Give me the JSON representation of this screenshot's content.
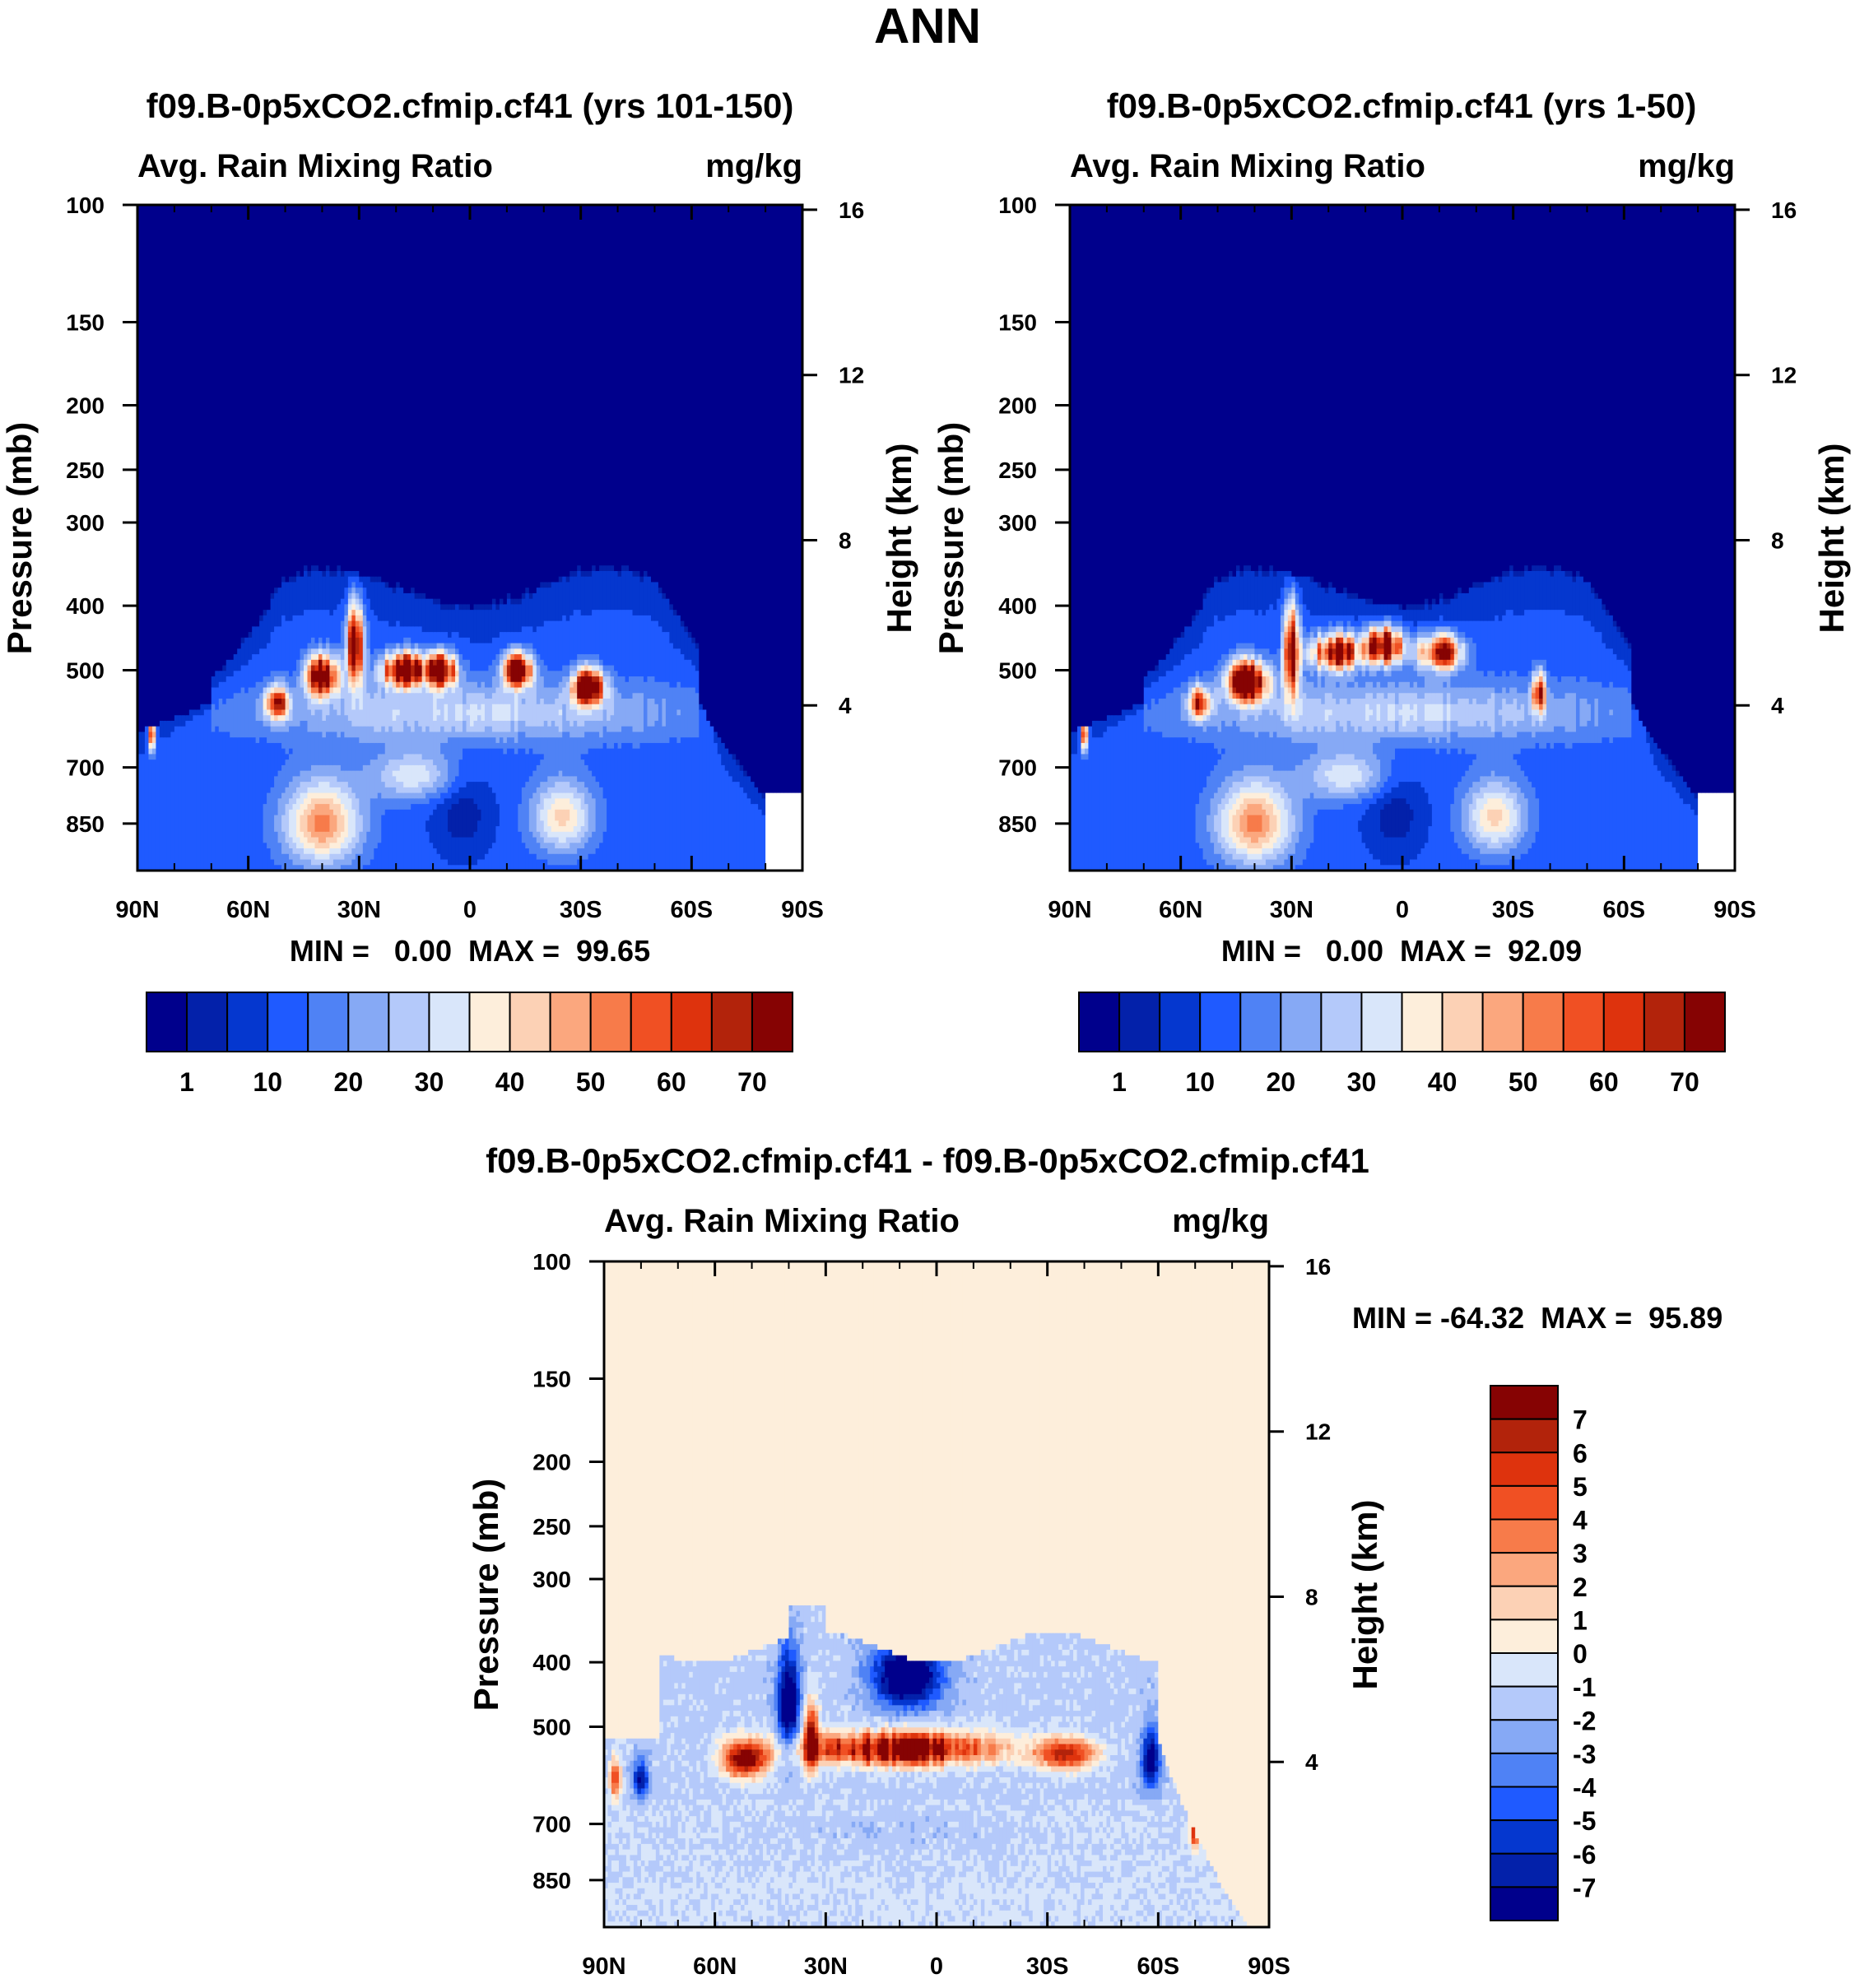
{
  "page_title": "ANN",
  "colors": {
    "seq": [
      "#00008c",
      "#0321aa",
      "#0537cf",
      "#1f5aff",
      "#4f82f5",
      "#86a9f5",
      "#b4c9fa",
      "#d9e6fa",
      "#fdeedb",
      "#fcd1b5",
      "#fba77e",
      "#f77b4a",
      "#f05023",
      "#de330d",
      "#b2230b",
      "#860303"
    ],
    "diff": [
      "#00008c",
      "#0321aa",
      "#0537cf",
      "#1f5aff",
      "#4f82f5",
      "#86a9f5",
      "#b4c9fa",
      "#d9e6fa",
      "#fdeedb",
      "#fcd1b5",
      "#fba77e",
      "#f77b4a",
      "#f05023",
      "#de330d",
      "#b2230b",
      "#860303"
    ]
  },
  "chart_data": [
    {
      "type": "heatmap",
      "title": "f09.B-0p5xCO2.cfmip.cf41 (yrs 101-150)",
      "left_string": "Avg. Rain Mixing Ratio",
      "right_string": "mg/kg",
      "ylabel": "Pressure (mb)",
      "ylabel_right": "Height (km)",
      "xlim": [
        90,
        -90
      ],
      "ylim": [
        100,
        1000
      ],
      "x_ticks": [
        "90N",
        "60N",
        "30N",
        "0",
        "30S",
        "60S",
        "90S"
      ],
      "y_ticks": [
        "100",
        "150",
        "200",
        "250",
        "300",
        "400",
        "500",
        "700",
        "850"
      ],
      "y_ticks_right": [
        "16",
        "12",
        "8",
        "4"
      ],
      "stats": "MIN =   0.00  MAX =  99.65",
      "min": 0.0,
      "max": 99.65,
      "colorbar_labels": [
        "1",
        "10",
        "20",
        "30",
        "40",
        "50",
        "60",
        "70"
      ],
      "field": "base"
    },
    {
      "type": "heatmap",
      "title": "f09.B-0p5xCO2.cfmip.cf41 (yrs 1-50)",
      "left_string": "Avg. Rain Mixing Ratio",
      "right_string": "mg/kg",
      "ylabel": "Pressure (mb)",
      "ylabel_right": "Height (km)",
      "xlim": [
        90,
        -90
      ],
      "ylim": [
        100,
        1000
      ],
      "x_ticks": [
        "90N",
        "60N",
        "30N",
        "0",
        "30S",
        "60S",
        "90S"
      ],
      "y_ticks": [
        "100",
        "150",
        "200",
        "250",
        "300",
        "400",
        "500",
        "700",
        "850"
      ],
      "y_ticks_right": [
        "16",
        "12",
        "8",
        "4"
      ],
      "stats": "MIN =   0.00  MAX =  92.09",
      "min": 0.0,
      "max": 92.09,
      "colorbar_labels": [
        "1",
        "10",
        "20",
        "30",
        "40",
        "50",
        "60",
        "70"
      ],
      "field": "base2"
    },
    {
      "type": "heatmap",
      "title": "f09.B-0p5xCO2.cfmip.cf41 - f09.B-0p5xCO2.cfmip.cf41",
      "left_string": "Avg. Rain Mixing Ratio",
      "right_string": "mg/kg",
      "ylabel": "Pressure (mb)",
      "ylabel_right": "Height (km)",
      "xlim": [
        90,
        -90
      ],
      "ylim": [
        100,
        1000
      ],
      "x_ticks": [
        "90N",
        "60N",
        "30N",
        "0",
        "30S",
        "60S",
        "90S"
      ],
      "y_ticks": [
        "100",
        "150",
        "200",
        "250",
        "300",
        "400",
        "500",
        "700",
        "850"
      ],
      "y_ticks_right": [
        "16",
        "12",
        "8",
        "4"
      ],
      "stats": "MIN = -64.32  MAX =  95.89",
      "min": -64.32,
      "max": 95.89,
      "colorbar_labels": [
        "7",
        "6",
        "5",
        "4",
        "3",
        "2",
        "1",
        "0",
        "-1",
        "-2",
        "-3",
        "-4",
        "-5",
        "-6",
        "-7"
      ],
      "field": "diff"
    }
  ]
}
